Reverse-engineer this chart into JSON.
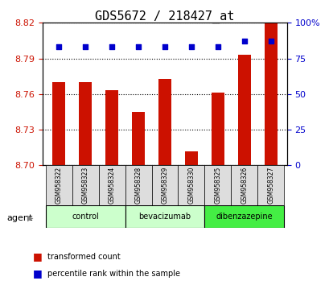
{
  "title": "GDS5672 / 218427_at",
  "samples": [
    "GSM958322",
    "GSM958323",
    "GSM958324",
    "GSM958328",
    "GSM958329",
    "GSM958330",
    "GSM958325",
    "GSM958326",
    "GSM958327"
  ],
  "red_values": [
    8.77,
    8.77,
    8.763,
    8.745,
    8.773,
    8.712,
    8.761,
    8.793,
    8.82
  ],
  "blue_values": [
    83,
    83,
    83,
    83,
    83,
    83,
    83,
    87,
    87
  ],
  "ylim_left": [
    8.7,
    8.82
  ],
  "ylim_right": [
    0,
    100
  ],
  "yticks_left": [
    8.7,
    8.73,
    8.76,
    8.79,
    8.82
  ],
  "yticks_right": [
    0,
    25,
    50,
    75,
    100
  ],
  "bar_color": "#cc1100",
  "dot_color": "#0000cc",
  "bar_width": 0.5,
  "background_color": "#ffffff",
  "tick_label_color_left": "#cc1100",
  "tick_label_color_right": "#0000cc",
  "legend_items": [
    "transformed count",
    "percentile rank within the sample"
  ],
  "agent_label": "agent",
  "groups_def": [
    [
      0,
      2,
      "control",
      "#ccffcc"
    ],
    [
      3,
      5,
      "bevacizumab",
      "#ccffcc"
    ],
    [
      6,
      8,
      "dibenzazepine",
      "#44ee44"
    ]
  ]
}
